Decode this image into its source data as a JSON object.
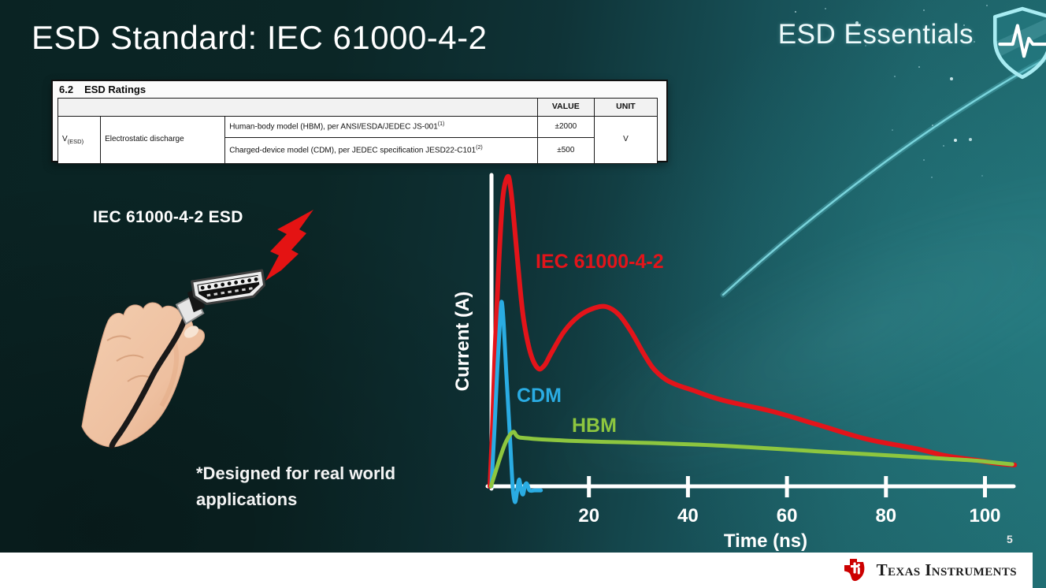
{
  "slide": {
    "title": "ESD Standard: IEC 61000-4-2",
    "brand": "ESD Essentials",
    "illustration_label": "IEC 61000-4-2 ESD",
    "footnote": "*Designed for real world\napplications",
    "page_number": "5",
    "footer_logo_text": "Texas Instruments"
  },
  "icons": {
    "brand_shield": "shield-with-pulse",
    "esd_bolt": "red-lightning-bolt",
    "illustration": "hand-holding-hdmi-connector",
    "footer_logo": "texas-instruments-bug"
  },
  "colors": {
    "background_dark": "#0b2424",
    "background_teal": "#1f6a6f",
    "accent_red": "#e3141a",
    "cdm_blue": "#2aace3",
    "hbm_green": "#8dc63f",
    "axis_white": "#ffffff",
    "footer_bg": "#ffffff",
    "ti_red": "#cc0000"
  },
  "ratings_table": {
    "caption_number": "6.2",
    "caption_title": "ESD Ratings",
    "col_value": "VALUE",
    "col_unit": "UNIT",
    "param_symbol": "V",
    "param_symbol_sub": "(ESD)",
    "param_name": "Electrostatic discharge",
    "rows": [
      {
        "desc": "Human-body model (HBM), per ANSI/ESDA/JEDEC JS-001",
        "ref": "(1)",
        "value": "±2000"
      },
      {
        "desc": "Charged-device model (CDM), per JEDEC specification JESD22-C101",
        "ref": "(2)",
        "value": "±500"
      }
    ],
    "unit": "V"
  },
  "chart_data": {
    "type": "line",
    "title": "",
    "xlabel": "Time (ns)",
    "ylabel": "Current (A)",
    "x_ticks": [
      20,
      40,
      60,
      80,
      100
    ],
    "xlim": [
      0,
      107
    ],
    "ylim": [
      -0.06,
      1.02
    ],
    "grid": false,
    "legend_position": "inline-labels",
    "y_units": "normalized to IEC 61000-4-2 peak",
    "series": [
      {
        "name": "IEC 61000-4-2",
        "color": "#e3141a",
        "width": 6,
        "points": [
          [
            0,
            0
          ],
          [
            0.5,
            0.18
          ],
          [
            1,
            0.42
          ],
          [
            1.8,
            0.72
          ],
          [
            2.6,
            0.93
          ],
          [
            3.6,
            1.0
          ],
          [
            4.2,
            0.96
          ],
          [
            4.9,
            0.85
          ],
          [
            5.8,
            0.69
          ],
          [
            6.8,
            0.54
          ],
          [
            8.2,
            0.43
          ],
          [
            9.7,
            0.381
          ],
          [
            11,
            0.39
          ],
          [
            12.4,
            0.43
          ],
          [
            15,
            0.5
          ],
          [
            18,
            0.55
          ],
          [
            21,
            0.575
          ],
          [
            23.5,
            0.58
          ],
          [
            26,
            0.555
          ],
          [
            28.5,
            0.5
          ],
          [
            31,
            0.43
          ],
          [
            33,
            0.381
          ],
          [
            35.5,
            0.345
          ],
          [
            38,
            0.326
          ],
          [
            41,
            0.31
          ],
          [
            47,
            0.278
          ],
          [
            57,
            0.242
          ],
          [
            66,
            0.2
          ],
          [
            76,
            0.153
          ],
          [
            86,
            0.122
          ],
          [
            92,
            0.099
          ],
          [
            98,
            0.085
          ],
          [
            103,
            0.073
          ],
          [
            106,
            0.069
          ]
        ]
      },
      {
        "name": "CDM",
        "color": "#2aace3",
        "width": 5,
        "points": [
          [
            0.3,
            0
          ],
          [
            0.9,
            0.18
          ],
          [
            1.5,
            0.38
          ],
          [
            2.1,
            0.55
          ],
          [
            2.4,
            0.595
          ],
          [
            2.8,
            0.52
          ],
          [
            3.3,
            0.37
          ],
          [
            3.9,
            0.2
          ],
          [
            4.4,
            0.05
          ],
          [
            4.7,
            -0.02
          ],
          [
            5.1,
            -0.051
          ],
          [
            5.5,
            -0.015
          ],
          [
            5.9,
            0.022
          ],
          [
            6.3,
            -0.012
          ],
          [
            6.7,
            -0.026
          ],
          [
            7.1,
            0.004
          ],
          [
            7.5,
            0.008
          ],
          [
            8,
            -0.013
          ],
          [
            9,
            -0.013
          ],
          [
            10.3,
            -0.013
          ]
        ]
      },
      {
        "name": "HBM",
        "color": "#8dc63f",
        "width": 5,
        "points": [
          [
            0.2,
            0
          ],
          [
            1,
            0.04
          ],
          [
            2,
            0.09
          ],
          [
            3,
            0.135
          ],
          [
            4,
            0.165
          ],
          [
            4.8,
            0.176
          ],
          [
            5.3,
            0.165
          ],
          [
            5.9,
            0.158
          ],
          [
            7,
            0.156
          ],
          [
            9,
            0.153
          ],
          [
            12,
            0.15
          ],
          [
            16,
            0.147
          ],
          [
            22,
            0.144
          ],
          [
            30,
            0.141
          ],
          [
            38,
            0.137
          ],
          [
            47,
            0.131
          ],
          [
            57,
            0.122
          ],
          [
            66,
            0.113
          ],
          [
            76,
            0.104
          ],
          [
            86,
            0.095
          ],
          [
            92,
            0.089
          ],
          [
            98,
            0.083
          ],
          [
            103,
            0.075
          ],
          [
            105.5,
            0.071
          ]
        ]
      }
    ]
  }
}
